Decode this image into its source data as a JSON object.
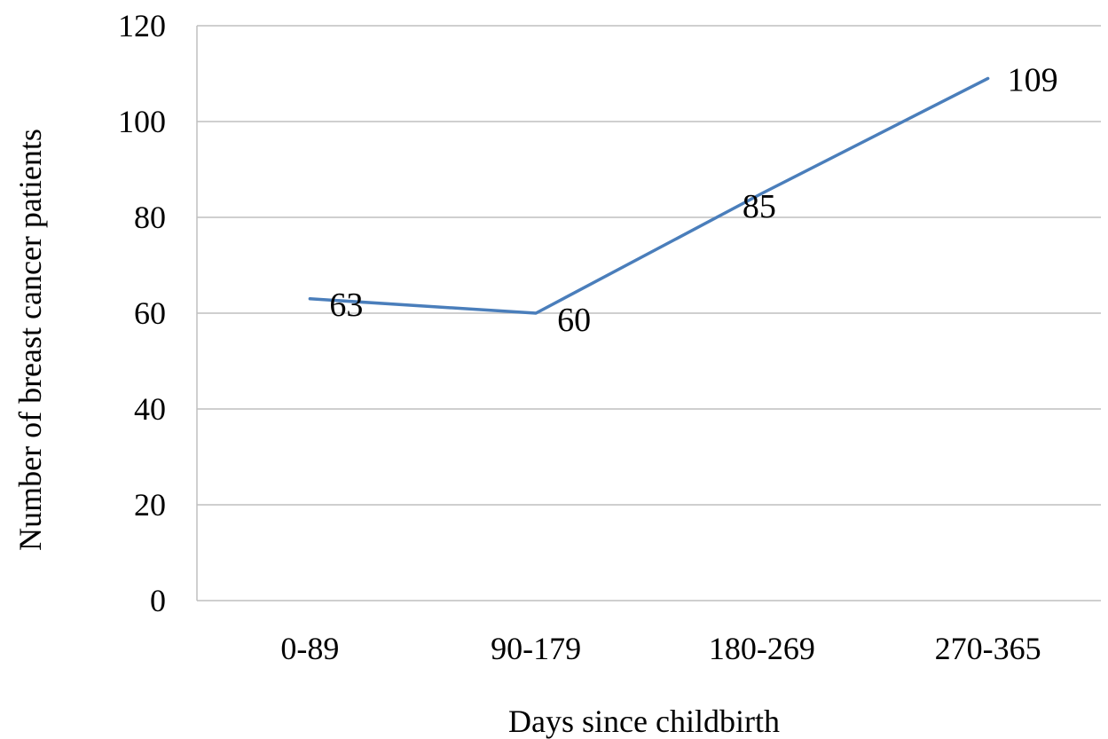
{
  "chart_data": {
    "type": "line",
    "title": "",
    "xlabel": "Days since childbirth",
    "ylabel": "Number of breast cancer patients",
    "categories": [
      "0-89",
      "90-179",
      "180-269",
      "270-365"
    ],
    "series": [
      {
        "values": [
          63,
          60,
          85,
          109
        ],
        "color": "#4a7ebb"
      }
    ],
    "data_labels": [
      "63",
      "60",
      "85",
      "109"
    ],
    "ylim": [
      0,
      120
    ],
    "yticks": [
      0,
      20,
      40,
      60,
      80,
      100,
      120
    ],
    "ytick_labels": [
      "0",
      "20",
      "40",
      "60",
      "80",
      "100",
      "120"
    ],
    "grid": true,
    "gridline_color": "#bfbfbf",
    "legend": "none"
  }
}
